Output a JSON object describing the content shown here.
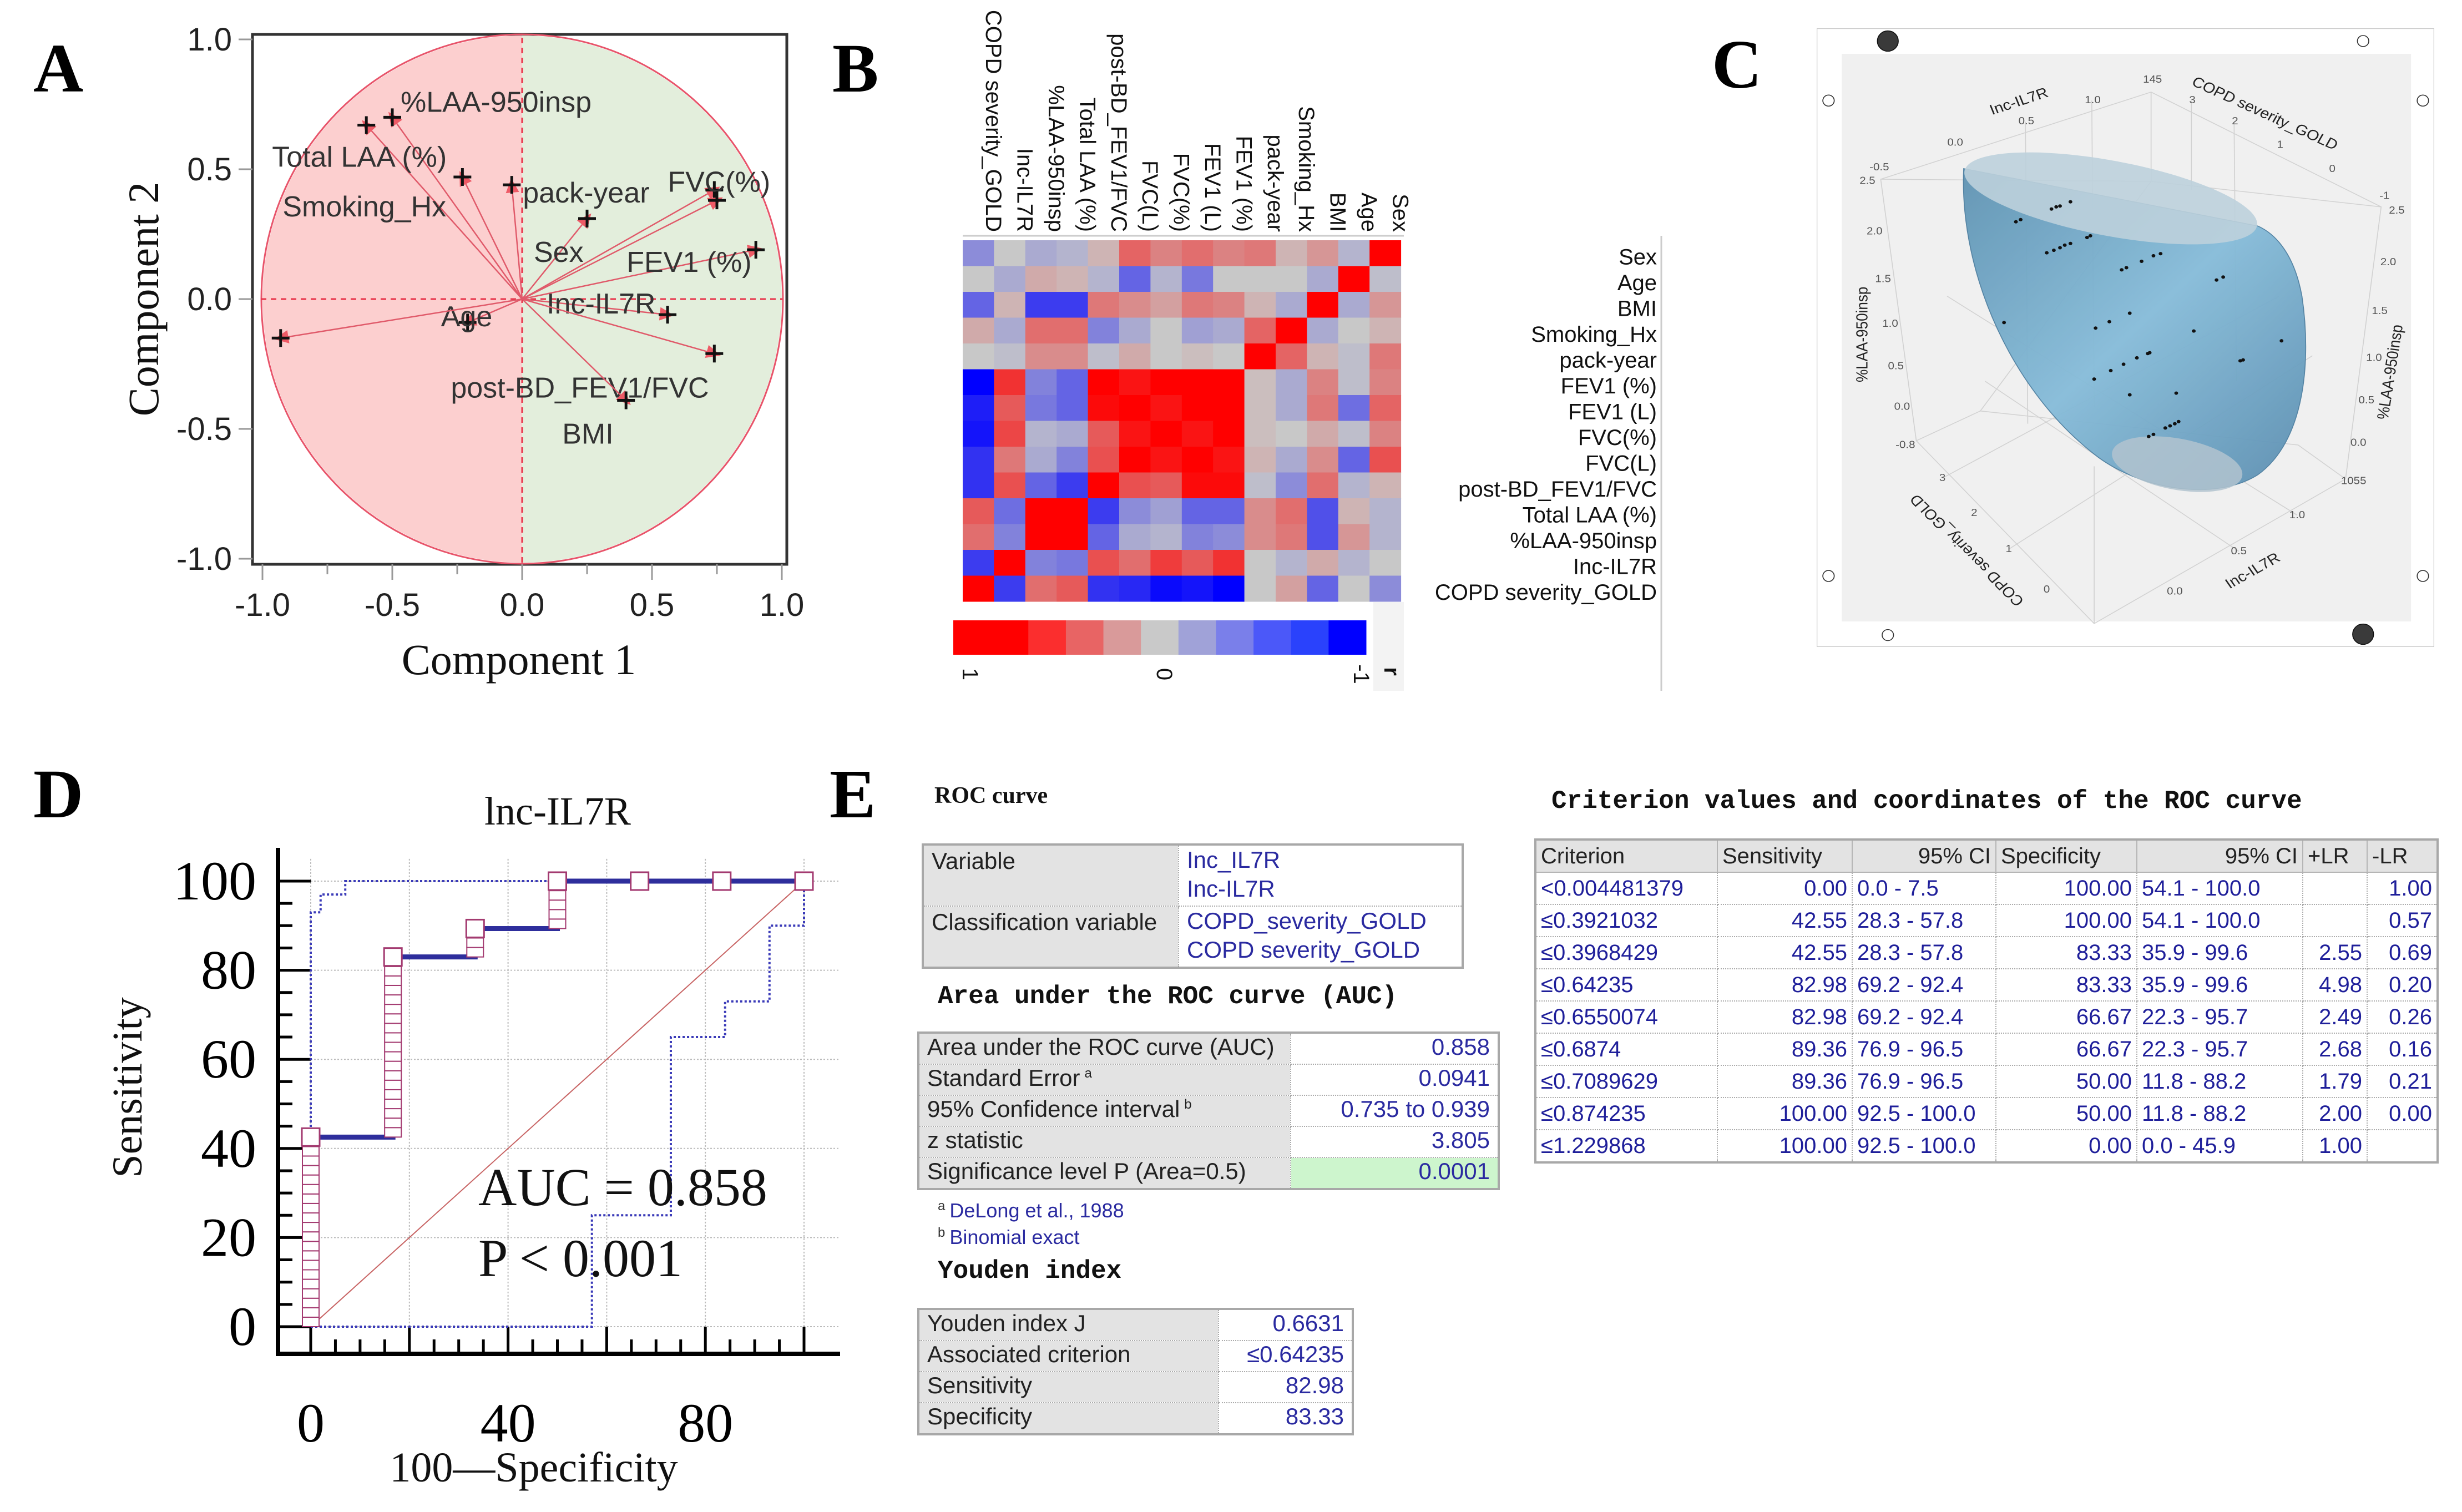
{
  "panel_letters": {
    "A": "A",
    "B": "B",
    "C": "C",
    "D": "D",
    "E": "E"
  },
  "chart_data": [
    {
      "panel": "A",
      "type": "scatter",
      "title": "",
      "xlabel": "Component 1",
      "ylabel": "Component 2",
      "xlim": [
        -1,
        1
      ],
      "ylim": [
        -1,
        1
      ],
      "xticks": [
        "-1.0",
        "-0.5",
        "0.0",
        "0.5",
        "1.0"
      ],
      "yticks": [
        "1.0",
        "0.5",
        "0.0",
        "-0.5",
        "-1.0"
      ],
      "points": [
        {
          "label": "%LAA-950insp",
          "x": -0.5,
          "y": 0.7
        },
        {
          "label": "Total LAA (%)",
          "x": -0.6,
          "y": 0.67
        },
        {
          "label": "Smoking_Hx",
          "x": -0.23,
          "y": 0.47
        },
        {
          "label": "pack-year",
          "x": -0.04,
          "y": 0.44
        },
        {
          "label": "Sex",
          "x": 0.25,
          "y": 0.31
        },
        {
          "label": "FVC(%)",
          "x": 0.74,
          "y": 0.42
        },
        {
          "label": "",
          "x": 0.75,
          "y": 0.38
        },
        {
          "label": "FEV1 (%)",
          "x": 0.9,
          "y": 0.19
        },
        {
          "label": "Inc-IL7R",
          "x": 0.56,
          "y": -0.06
        },
        {
          "label": "Age",
          "x": -0.21,
          "y": -0.09
        },
        {
          "label": "post-BD_FEV1/FVC",
          "x": 0.74,
          "y": -0.21
        },
        {
          "label": "BMI",
          "x": 0.4,
          "y": -0.39
        },
        {
          "label": "",
          "x": -0.93,
          "y": -0.15
        }
      ]
    },
    {
      "panel": "B",
      "type": "heatmap",
      "columns": [
        "COPD severity_GOLD",
        "Inc-IL7R",
        "%LAA-950insp",
        "Total LAA (%)",
        "post-BD_FEV1/FVC",
        "FVC(L)",
        "FVC(%)",
        "FEV1 (L)",
        "FEV1 (%)",
        "pack-year",
        "Smoking_Hx",
        "BMI",
        "Age",
        "Sex"
      ],
      "rows": [
        "Sex",
        "Age",
        "BMI",
        "Smoking_Hx",
        "pack-year",
        "FEV1 (%)",
        "FEV1 (L)",
        "FVC(%)",
        "FVC(L)",
        "post-BD_FEV1/FVC",
        "Total LAA (%)",
        "%LAA-950insp",
        "Inc-IL7R",
        "COPD severity_GOLD"
      ],
      "values": [
        [
          -0.3,
          0,
          -0.15,
          -0.1,
          0.1,
          0.5,
          0.35,
          0.45,
          0.35,
          0.4,
          0.1,
          0.25,
          -0.1,
          1
        ],
        [
          0,
          -0.15,
          0.15,
          0.1,
          -0.1,
          -0.5,
          -0.1,
          -0.4,
          0,
          0,
          0,
          -0.15,
          1,
          -0.05
        ],
        [
          -0.5,
          0.1,
          -0.7,
          -0.7,
          0.4,
          0.3,
          0.2,
          0.4,
          0.35,
          0.1,
          -0.15,
          1,
          -0.15,
          0.25
        ],
        [
          0.15,
          -0.15,
          0.45,
          0.45,
          -0.35,
          -0.15,
          0,
          -0.2,
          -0.15,
          0.5,
          1,
          -0.15,
          0,
          0.1
        ],
        [
          0,
          -0.05,
          0.3,
          0.3,
          -0.05,
          0.15,
          0,
          0.05,
          0,
          1,
          0.5,
          0.1,
          -0.05,
          0.4
        ],
        [
          -1,
          0.75,
          -0.35,
          -0.5,
          1,
          0.9,
          1,
          1,
          1,
          0.05,
          -0.15,
          0.35,
          -0.05,
          0.35
        ],
        [
          -0.85,
          0.55,
          -0.4,
          -0.5,
          0.95,
          1,
          0.9,
          1,
          1,
          0.05,
          -0.15,
          0.4,
          -0.45,
          0.5
        ],
        [
          -0.9,
          0.65,
          -0.1,
          -0.15,
          0.55,
          0.9,
          1,
          0.9,
          1,
          0.05,
          0,
          0.15,
          -0.05,
          0.35
        ],
        [
          -0.75,
          0.4,
          -0.15,
          -0.35,
          0.6,
          1,
          0.9,
          1,
          0.9,
          0.1,
          -0.15,
          0.3,
          -0.5,
          0.6
        ],
        [
          -0.75,
          0.6,
          -0.5,
          -0.7,
          1,
          0.6,
          0.55,
          0.95,
          0.95,
          -0.05,
          -0.3,
          0.45,
          -0.1,
          0.1
        ],
        [
          0.55,
          -0.45,
          1,
          1,
          -0.7,
          -0.3,
          -0.2,
          -0.5,
          -0.5,
          0.3,
          0.45,
          -0.6,
          0.1,
          -0.1
        ],
        [
          0.45,
          -0.35,
          1,
          1,
          -0.5,
          -0.15,
          -0.1,
          -0.35,
          -0.3,
          0.3,
          0.4,
          -0.6,
          0.25,
          -0.1
        ],
        [
          -0.7,
          1,
          -0.35,
          -0.4,
          0.6,
          0.45,
          0.7,
          0.55,
          0.75,
          0,
          -0.1,
          0.15,
          -0.1,
          0
        ],
        [
          1,
          -0.7,
          0.45,
          0.55,
          -0.75,
          -0.8,
          -0.95,
          -0.9,
          -1,
          0,
          0.2,
          -0.5,
          0,
          -0.3
        ]
      ],
      "colorbar": {
        "range": [
          1,
          -1
        ],
        "labels": [
          "1",
          "0",
          "-1"
        ],
        "title": "r",
        "colors": [
          "#ff0000",
          "#ff0000",
          "#fb2e2e",
          "#e86464",
          "#d99a9a",
          "#c9c9c9",
          "#a0a2d8",
          "#7a7fea",
          "#4b58f9",
          "#2a42fc",
          "#0000ff"
        ]
      }
    },
    {
      "panel": "C",
      "type": "scatter3d",
      "axes": {
        "x_label": "Inc-IL7R",
        "y_label": "COPD severity_GOLD",
        "z_label": "%LAA-950insp",
        "left_z_ticks": [
          "2.5",
          "2.0",
          "1.5",
          "1.0",
          "0.5",
          "0.0",
          "-0.8"
        ],
        "top_x_ticks": [
          "-0.5",
          "0.0",
          "0.5",
          "1.0",
          "145"
        ],
        "top_y_ticks": [
          "3",
          "2",
          "1",
          "0",
          "-1"
        ],
        "right_z_ticks": [
          "2.5",
          "2.0",
          "1.5",
          "1.0",
          "0.5",
          "0.0",
          "1055"
        ],
        "bottom_y_ticks": [
          "3",
          "2",
          "1",
          "0"
        ],
        "bottom_x_ticks": [
          "0.0",
          "0.5",
          "1.0"
        ]
      },
      "surface_color": "#7fb3d1"
    },
    {
      "panel": "D",
      "type": "line",
      "title": "lnc-IL7R",
      "xlabel": "100—Specificity",
      "ylabel": "Sensitivity",
      "xlim": [
        0,
        100
      ],
      "ylim": [
        0,
        100
      ],
      "xticks": [
        "0",
        "40",
        "80"
      ],
      "yticks": [
        "100",
        "80",
        "60",
        "40",
        "20",
        "0"
      ],
      "series": [
        {
          "name": "ROC",
          "color": "#2e2e9c",
          "points": [
            [
              0,
              0
            ],
            [
              0,
              42.55
            ],
            [
              16.67,
              42.55
            ],
            [
              16.67,
              82.98
            ],
            [
              33.33,
              82.98
            ],
            [
              33.33,
              89.36
            ],
            [
              50,
              89.36
            ],
            [
              50,
              100
            ],
            [
              100,
              100
            ]
          ]
        },
        {
          "name": "CI upper",
          "color": "#3a3ab8",
          "points": [
            [
              0,
              0
            ],
            [
              0,
              93
            ],
            [
              2,
              93
            ],
            [
              2,
              97
            ],
            [
              7,
              97
            ],
            [
              7,
              100
            ],
            [
              100,
              100
            ]
          ]
        },
        {
          "name": "CI lower",
          "color": "#3a3ab8",
          "points": [
            [
              0,
              0
            ],
            [
              57,
              0
            ],
            [
              57,
              25
            ],
            [
              73,
              25
            ],
            [
              73,
              65
            ],
            [
              84,
              65
            ],
            [
              84,
              73
            ],
            [
              93,
              73
            ],
            [
              93,
              90
            ],
            [
              100,
              90
            ],
            [
              100,
              100
            ]
          ]
        },
        {
          "name": "Reference",
          "color": "#c86464",
          "points": [
            [
              0,
              0
            ],
            [
              100,
              100
            ]
          ]
        }
      ],
      "annotations": [
        "AUC = 0.858",
        "P < 0.001"
      ]
    }
  ],
  "panel_e": {
    "roc_title": "ROC curve",
    "variable_table": [
      {
        "label": "Variable",
        "values": [
          "Inc_IL7R",
          "Inc-IL7R"
        ]
      },
      {
        "label": "Classification variable",
        "values": [
          "COPD_severity_GOLD",
          "COPD severity_GOLD"
        ]
      }
    ],
    "auc_title": "Area under the ROC curve (AUC)",
    "auc_table": [
      {
        "label": "Area under the ROC curve (AUC)",
        "sup": "",
        "value": "0.858"
      },
      {
        "label": "Standard Error",
        "sup": "a",
        "value": "0.0941"
      },
      {
        "label": "95% Confidence interval",
        "sup": "b",
        "value": "0.735 to 0.939"
      },
      {
        "label": "z statistic",
        "sup": "",
        "value": "3.805"
      },
      {
        "label": "Significance level P (Area=0.5)",
        "sup": "",
        "value": "0.0001"
      }
    ],
    "footnotes": [
      {
        "sup": "a",
        "text": "DeLong et al., 1988"
      },
      {
        "sup": "b",
        "text": "Binomial exact"
      }
    ],
    "youden_title": "Youden index",
    "youden_table": [
      {
        "label": "Youden index J",
        "value": "0.6631"
      },
      {
        "label": "Associated criterion",
        "value": "≤0.64235"
      },
      {
        "label": "Sensitivity",
        "value": "82.98"
      },
      {
        "label": "Specificity",
        "value": "83.33"
      }
    ],
    "criterion_title": "Criterion values and coordinates of the ROC curve",
    "criterion_headers": [
      "Criterion",
      "Sensitivity",
      "95% CI",
      "Specificity",
      "95% CI",
      "+LR",
      "-LR"
    ],
    "criterion_rows": [
      [
        "<0.004481379",
        "0.00",
        "0.0 - 7.5",
        "100.00",
        "54.1 - 100.0",
        "",
        "1.00"
      ],
      [
        "≤0.3921032",
        "42.55",
        "28.3 - 57.8",
        "100.00",
        "54.1 - 100.0",
        "",
        "0.57"
      ],
      [
        "≤0.3968429",
        "42.55",
        "28.3 - 57.8",
        "83.33",
        "35.9 - 99.6",
        "2.55",
        "0.69"
      ],
      [
        "≤0.64235",
        "82.98",
        "69.2 - 92.4",
        "83.33",
        "35.9 - 99.6",
        "4.98",
        "0.20"
      ],
      [
        "≤0.6550074",
        "82.98",
        "69.2 - 92.4",
        "66.67",
        "22.3 - 95.7",
        "2.49",
        "0.26"
      ],
      [
        "≤0.6874",
        "89.36",
        "76.9 - 96.5",
        "66.67",
        "22.3 - 95.7",
        "2.68",
        "0.16"
      ],
      [
        "≤0.7089629",
        "89.36",
        "76.9 - 96.5",
        "50.00",
        "11.8 - 88.2",
        "1.79",
        "0.21"
      ],
      [
        "≤0.874235",
        "100.00",
        "92.5 - 100.0",
        "50.00",
        "11.8 - 88.2",
        "2.00",
        "0.00"
      ],
      [
        "≤1.229868",
        "100.00",
        "92.5 - 100.0",
        "0.00",
        "0.0 - 45.9",
        "1.00",
        ""
      ]
    ]
  }
}
